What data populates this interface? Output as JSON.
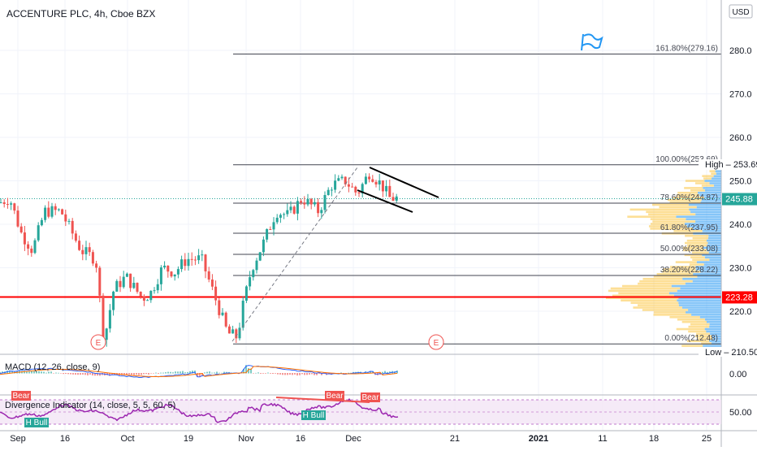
{
  "title": "ACCENTURE PLC, 4h, Cboe BZX",
  "currency_label": "USD",
  "colors": {
    "up": "#26a69a",
    "down": "#ef5350",
    "fib": "#434651",
    "support": "#ff0000",
    "macd": "#2962ff",
    "signal": "#ff6d00",
    "divergence": "#9c27b0",
    "bull": "#26a69a",
    "bear": "#ef5350",
    "vp_up": "#2196f3",
    "vp_down": "#fbc02d"
  },
  "chart_data": [
    {
      "type": "candlestick",
      "ylim": [
        210,
        290
      ],
      "y_ticks": [
        220,
        230,
        240,
        250,
        260,
        270,
        280
      ],
      "x_ticks": [
        "Sep",
        "16",
        "Oct",
        "19",
        "Nov",
        "16",
        "Dec",
        "21",
        "2021",
        "11",
        "18",
        "25"
      ],
      "last_price": "245.88",
      "high_label": "High",
      "high_value": "253.69",
      "low_label": "Low",
      "low_value": "210.50",
      "support_level": "223.28",
      "fib_levels": [
        {
          "label": "0.00%(212.48)",
          "value": 212.48
        },
        {
          "label": "38.20%(228.22)",
          "value": 228.22
        },
        {
          "label": "50.00%(233.08)",
          "value": 233.08
        },
        {
          "label": "61.80%(237.95)",
          "value": 237.95
        },
        {
          "label": "78.60%(244.87)",
          "value": 244.87
        },
        {
          "label": "100.00%(253.69)",
          "value": 253.69
        },
        {
          "label": "161.80%(279.16)",
          "value": 279.16
        }
      ],
      "earnings_marker": "E"
    },
    {
      "type": "line",
      "title": "MACD (12, 26, close, 9)",
      "y_ticks": [
        "0.00"
      ]
    },
    {
      "type": "line",
      "title": "Divergence Indicator (14, close, 5, 5, 60, 5)",
      "y_ticks": [
        "50.00"
      ],
      "labels": {
        "bear": "Bear",
        "bull": "H Bull"
      }
    }
  ]
}
